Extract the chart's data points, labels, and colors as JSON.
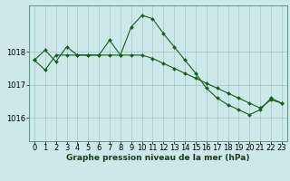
{
  "title": "Graphe pression niveau de la mer (hPa)",
  "background_color": "#cce8e8",
  "plot_bg_color": "#cce8e8",
  "grid_color": "#aacccc",
  "line_color": "#1a5c1a",
  "spine_color": "#4a8a6a",
  "xlim": [
    -0.5,
    23.5
  ],
  "ylim": [
    1015.3,
    1019.4
  ],
  "yticks": [
    1016,
    1017,
    1018
  ],
  "xticks": [
    0,
    1,
    2,
    3,
    4,
    5,
    6,
    7,
    8,
    9,
    10,
    11,
    12,
    13,
    14,
    15,
    16,
    17,
    18,
    19,
    20,
    21,
    22,
    23
  ],
  "series1_x": [
    0,
    1,
    2,
    3,
    4,
    5,
    6,
    7,
    8,
    9,
    10,
    11,
    12,
    13,
    14,
    15,
    16,
    17,
    18,
    19,
    20,
    21,
    22,
    23
  ],
  "series1_y": [
    1017.75,
    1018.05,
    1017.7,
    1018.15,
    1017.9,
    1017.9,
    1017.9,
    1018.35,
    1017.9,
    1018.75,
    1019.1,
    1019.0,
    1018.55,
    1018.15,
    1017.75,
    1017.35,
    1016.9,
    1016.6,
    1016.4,
    1016.25,
    1016.1,
    1016.25,
    1016.6,
    1016.45
  ],
  "series2_x": [
    0,
    1,
    2,
    3,
    4,
    5,
    6,
    7,
    8,
    9,
    10,
    11,
    12,
    13,
    14,
    15,
    16,
    17,
    18,
    19,
    20,
    21,
    22,
    23
  ],
  "series2_y": [
    1017.75,
    1017.45,
    1017.9,
    1017.9,
    1017.9,
    1017.9,
    1017.9,
    1017.9,
    1017.9,
    1017.9,
    1017.9,
    1017.8,
    1017.65,
    1017.5,
    1017.35,
    1017.2,
    1017.05,
    1016.9,
    1016.75,
    1016.6,
    1016.45,
    1016.3,
    1016.55,
    1016.45
  ],
  "tick_fontsize": 6,
  "label_fontsize": 6.5
}
